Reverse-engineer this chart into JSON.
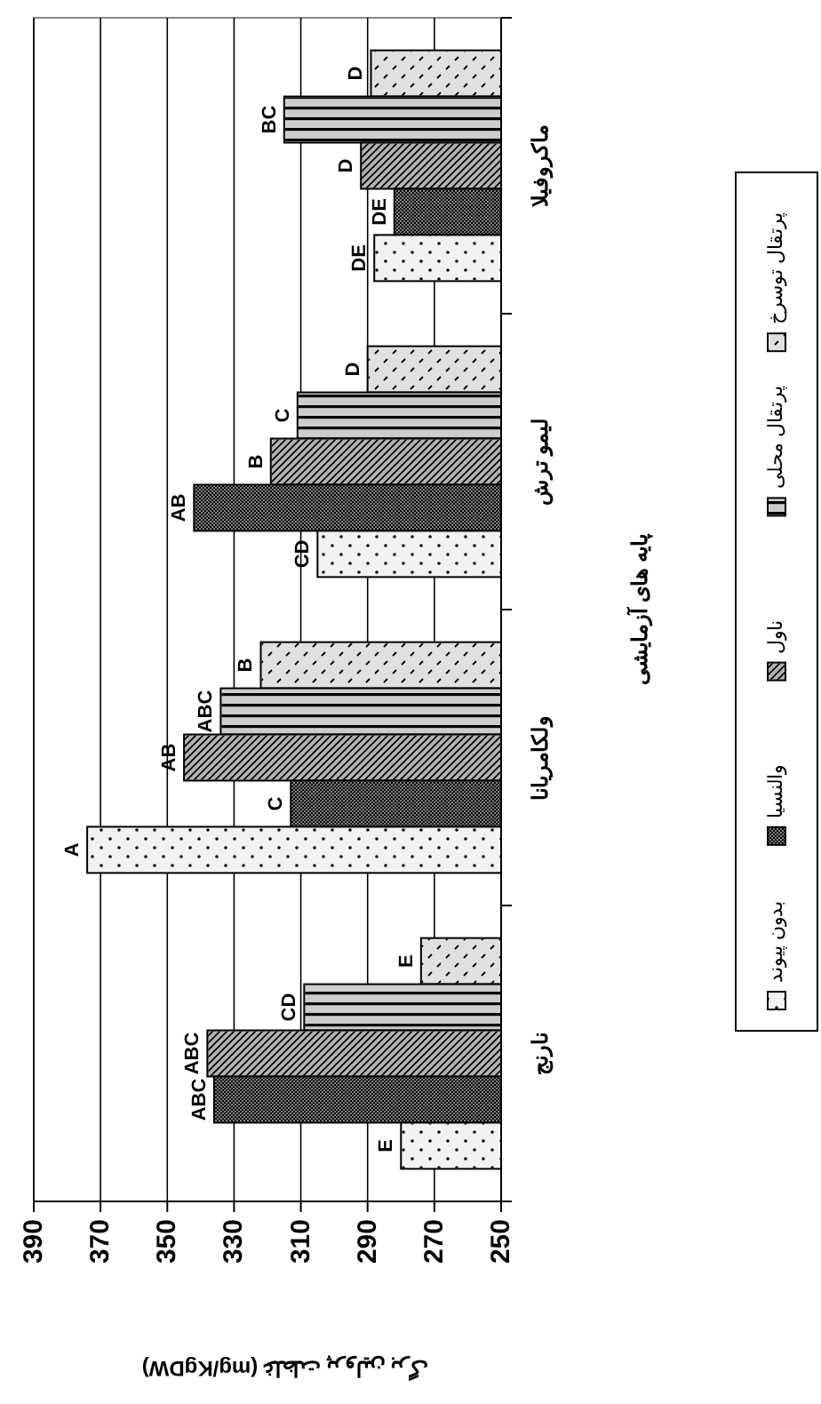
{
  "chart_data": {
    "type": "bar",
    "orientation": "horizontal",
    "ylabel": "پایه های آزمایشی",
    "xlabel": "غلظت پرولین برگ (mg/KgDW)",
    "categories": [
      "ماکروفیلا",
      "لیمو ترش",
      "ولکامریانا",
      "نارنج"
    ],
    "xlim": [
      390,
      250
    ],
    "xticks": [
      390,
      370,
      350,
      330,
      310,
      290,
      270,
      250
    ],
    "grid": "x",
    "legend": "right",
    "series": [
      {
        "name": "پرتقال توسرخ",
        "color": "#e0e0e0",
        "values": [
          289,
          290,
          322,
          274
        ],
        "value_labels": [
          "D",
          "D",
          "B",
          "E"
        ]
      },
      {
        "name": "پرتقال محلی",
        "color": "#cccccc",
        "values": [
          315,
          311,
          334,
          309
        ],
        "value_labels": [
          "BC",
          "C",
          "ABC",
          "CD"
        ]
      },
      {
        "name": "ناول",
        "color": "#b3b3b3",
        "values": [
          292,
          319,
          345,
          338
        ],
        "value_labels": [
          "D",
          "B",
          "AB",
          "ABC"
        ]
      },
      {
        "name": "والنسیا",
        "color": "#7f7f7f",
        "values": [
          282,
          342,
          313,
          336
        ],
        "value_labels": [
          "DE",
          "AB",
          "C",
          "ABC"
        ]
      },
      {
        "name": "بدون پیوند",
        "color": "#f2f2f2",
        "values": [
          288,
          305,
          374,
          280
        ],
        "value_labels": [
          "DE",
          "CD",
          "A",
          "E"
        ]
      }
    ]
  }
}
